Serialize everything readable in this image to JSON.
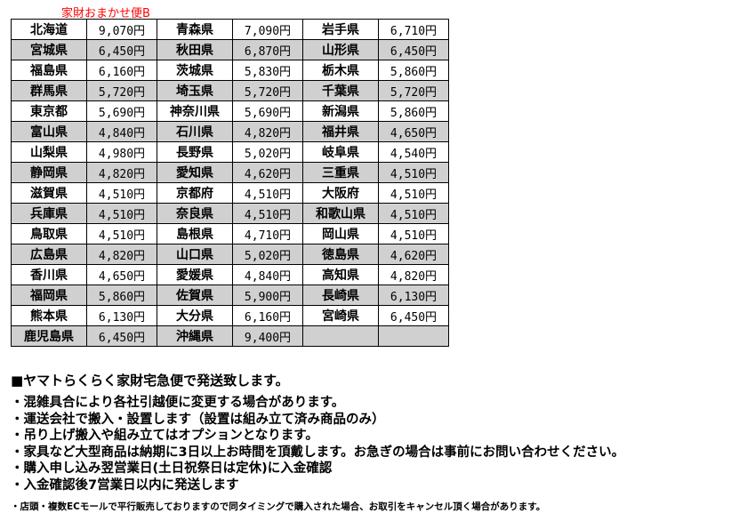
{
  "title": "家財おまかせ便B",
  "colors": {
    "title": "#ff0000",
    "row_alt": "#d0d0d0"
  },
  "rows": [
    [
      [
        "北海道",
        "9,070円"
      ],
      [
        "青森県",
        "7,090円"
      ],
      [
        "岩手県",
        "6,710円"
      ]
    ],
    [
      [
        "宮城県",
        "6,450円"
      ],
      [
        "秋田県",
        "6,870円"
      ],
      [
        "山形県",
        "6,450円"
      ]
    ],
    [
      [
        "福島県",
        "6,160円"
      ],
      [
        "茨城県",
        "5,830円"
      ],
      [
        "栃木県",
        "5,860円"
      ]
    ],
    [
      [
        "群馬県",
        "5,720円"
      ],
      [
        "埼玉県",
        "5,720円"
      ],
      [
        "千葉県",
        "5,720円"
      ]
    ],
    [
      [
        "東京都",
        "5,690円"
      ],
      [
        "神奈川県",
        "5,690円"
      ],
      [
        "新潟県",
        "5,860円"
      ]
    ],
    [
      [
        "富山県",
        "4,840円"
      ],
      [
        "石川県",
        "4,820円"
      ],
      [
        "福井県",
        "4,650円"
      ]
    ],
    [
      [
        "山梨県",
        "4,980円"
      ],
      [
        "長野県",
        "5,020円"
      ],
      [
        "岐阜県",
        "4,540円"
      ]
    ],
    [
      [
        "静岡県",
        "4,820円"
      ],
      [
        "愛知県",
        "4,620円"
      ],
      [
        "三重県",
        "4,510円"
      ]
    ],
    [
      [
        "滋賀県",
        "4,510円"
      ],
      [
        "京都府",
        "4,510円"
      ],
      [
        "大阪府",
        "4,510円"
      ]
    ],
    [
      [
        "兵庫県",
        "4,510円"
      ],
      [
        "奈良県",
        "4,510円"
      ],
      [
        "和歌山県",
        "4,510円"
      ]
    ],
    [
      [
        "鳥取県",
        "4,510円"
      ],
      [
        "島根県",
        "4,710円"
      ],
      [
        "岡山県",
        "4,510円"
      ]
    ],
    [
      [
        "広島県",
        "4,820円"
      ],
      [
        "山口県",
        "5,020円"
      ],
      [
        "徳島県",
        "4,620円"
      ]
    ],
    [
      [
        "香川県",
        "4,650円"
      ],
      [
        "愛媛県",
        "4,840円"
      ],
      [
        "高知県",
        "4,820円"
      ]
    ],
    [
      [
        "福岡県",
        "5,860円"
      ],
      [
        "佐賀県",
        "5,900円"
      ],
      [
        "長崎県",
        "6,130円"
      ]
    ],
    [
      [
        "熊本県",
        "6,130円"
      ],
      [
        "大分県",
        "6,160円"
      ],
      [
        "宮崎県",
        "6,450円"
      ]
    ],
    [
      [
        "鹿児島県",
        "6,450円"
      ],
      [
        "沖縄県",
        "9,400円"
      ],
      [
        "",
        ""
      ]
    ]
  ],
  "notes": {
    "heading": "■ヤマトらくらく家財宅急便で発送致します。",
    "bullets": [
      "・混雑具合により各社引越便に変更する場合があります。",
      "・運送会社で搬入・設置します（設置は組み立て済み商品のみ）",
      "・吊り上げ搬入や組み立てはオプションとなります。",
      "・家具など大型商品は納期に3日以上お時間を頂戴します。お急ぎの場合は事前にお問い合わせください。",
      "・購入申し込み翌営業日(土日祝祭日は定休)に入金確認",
      "・入金確認後7営業日以内に発送します"
    ],
    "small": "・店頭・複数ECモールで平行販売しておりますので同タイミングで購入された場合、お取引をキャンセル頂く場合があります。"
  }
}
